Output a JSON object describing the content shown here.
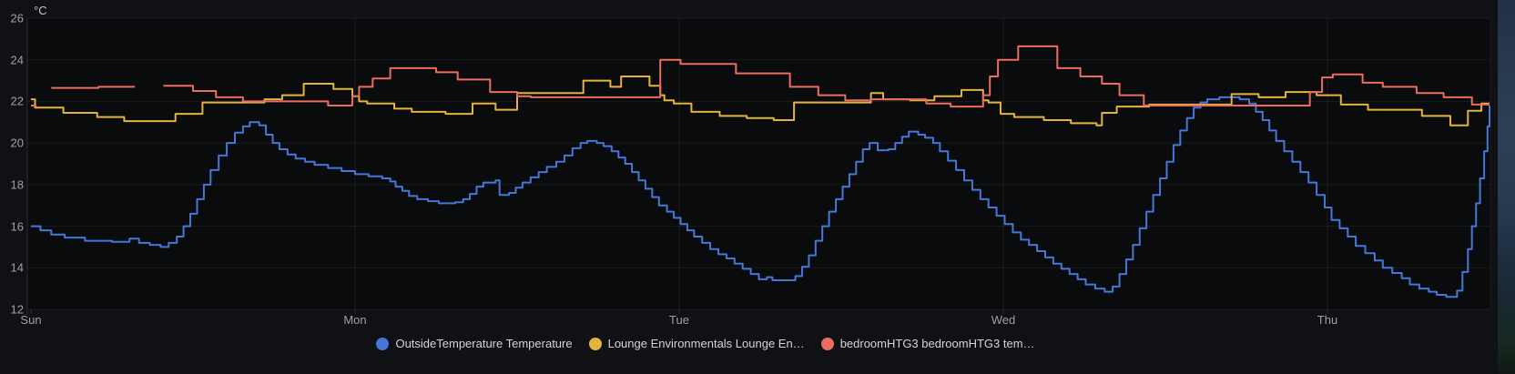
{
  "y_axis": {
    "unit_label": "°C",
    "ticks": [
      12,
      14,
      16,
      18,
      20,
      22,
      24,
      26
    ],
    "min": 12,
    "max": 26
  },
  "x_axis": {
    "ticks": [
      {
        "label": "Sun",
        "t": 0
      },
      {
        "label": "Mon",
        "t": 24
      },
      {
        "label": "Tue",
        "t": 48
      },
      {
        "label": "Wed",
        "t": 72
      },
      {
        "label": "Thu",
        "t": 96
      }
    ],
    "hours_total": 108
  },
  "legend": {
    "items": [
      {
        "label": "OutsideTemperature Temperature",
        "color": "#4677D8"
      },
      {
        "label": "Lounge Environmentals Lounge En…",
        "color": "#E3B341"
      },
      {
        "label": "bedroomHTG3 bedroomHTG3 tem…",
        "color": "#EA6D60"
      }
    ]
  },
  "colors": {
    "panel_bg": "#101114",
    "plot_bg": "#0a0b0c",
    "grid": "rgba(201,209,217,0.08)",
    "border": "rgba(201,209,217,0.15)",
    "tick_text": "#9fa0a6",
    "legend_text": "#d4d5da"
  },
  "chart_data": {
    "type": "line",
    "interpolation": "step-after",
    "title": "",
    "xlabel": "",
    "ylabel": "°C",
    "x_unit": "hours from Sun 00:00",
    "x_range": [
      0,
      108
    ],
    "ylim": [
      12,
      26
    ],
    "grid": true,
    "legend_position": "bottom-center",
    "series": [
      {
        "name": "OutsideTemperature Temperature",
        "color": "#4677D8",
        "points": [
          [
            0,
            16.0
          ],
          [
            0.7,
            15.8
          ],
          [
            1.5,
            15.6
          ],
          [
            2.5,
            15.45
          ],
          [
            4,
            15.3
          ],
          [
            6,
            15.25
          ],
          [
            7.3,
            15.4
          ],
          [
            8,
            15.2
          ],
          [
            8.8,
            15.1
          ],
          [
            9.6,
            15.0
          ],
          [
            10.2,
            15.2
          ],
          [
            10.8,
            15.5
          ],
          [
            11.3,
            16.0
          ],
          [
            11.8,
            16.6
          ],
          [
            12.3,
            17.3
          ],
          [
            12.8,
            18.0
          ],
          [
            13.3,
            18.7
          ],
          [
            13.9,
            19.4
          ],
          [
            14.5,
            20.0
          ],
          [
            15.1,
            20.5
          ],
          [
            15.7,
            20.8
          ],
          [
            16.2,
            21.0
          ],
          [
            16.9,
            20.85
          ],
          [
            17.4,
            20.4
          ],
          [
            17.9,
            20.0
          ],
          [
            18.4,
            19.7
          ],
          [
            19,
            19.45
          ],
          [
            19.6,
            19.25
          ],
          [
            20.3,
            19.1
          ],
          [
            21,
            18.95
          ],
          [
            22,
            18.8
          ],
          [
            23,
            18.65
          ],
          [
            24,
            18.5
          ],
          [
            25,
            18.4
          ],
          [
            26,
            18.3
          ],
          [
            26.6,
            18.15
          ],
          [
            27,
            17.9
          ],
          [
            27.5,
            17.7
          ],
          [
            28,
            17.45
          ],
          [
            28.6,
            17.3
          ],
          [
            29.4,
            17.2
          ],
          [
            30.2,
            17.1
          ],
          [
            31.4,
            17.15
          ],
          [
            32,
            17.3
          ],
          [
            32.5,
            17.55
          ],
          [
            33,
            17.9
          ],
          [
            33.5,
            18.1
          ],
          [
            34.4,
            18.2
          ],
          [
            34.7,
            17.5
          ],
          [
            35.4,
            17.6
          ],
          [
            35.9,
            17.85
          ],
          [
            36.4,
            18.1
          ],
          [
            37,
            18.35
          ],
          [
            37.6,
            18.6
          ],
          [
            38.2,
            18.85
          ],
          [
            38.9,
            19.1
          ],
          [
            39.5,
            19.4
          ],
          [
            40.1,
            19.75
          ],
          [
            40.7,
            20.0
          ],
          [
            41.2,
            20.1
          ],
          [
            41.9,
            20.0
          ],
          [
            42.4,
            19.85
          ],
          [
            43,
            19.6
          ],
          [
            43.5,
            19.3
          ],
          [
            44,
            19.0
          ],
          [
            44.5,
            18.6
          ],
          [
            45,
            18.2
          ],
          [
            45.5,
            17.8
          ],
          [
            46,
            17.4
          ],
          [
            46.5,
            17.0
          ],
          [
            47.1,
            16.7
          ],
          [
            47.6,
            16.4
          ],
          [
            48.1,
            16.1
          ],
          [
            48.6,
            15.8
          ],
          [
            49.1,
            15.5
          ],
          [
            49.7,
            15.2
          ],
          [
            50.3,
            14.9
          ],
          [
            50.9,
            14.65
          ],
          [
            51.5,
            14.45
          ],
          [
            52.1,
            14.2
          ],
          [
            52.7,
            13.95
          ],
          [
            53.3,
            13.7
          ],
          [
            53.9,
            13.45
          ],
          [
            54.5,
            13.55
          ],
          [
            54.9,
            13.4
          ],
          [
            56.6,
            13.6
          ],
          [
            57.1,
            14.05
          ],
          [
            57.6,
            14.6
          ],
          [
            58.1,
            15.3
          ],
          [
            58.6,
            16.0
          ],
          [
            59.1,
            16.7
          ],
          [
            59.6,
            17.3
          ],
          [
            60.1,
            17.9
          ],
          [
            60.6,
            18.5
          ],
          [
            61.1,
            19.1
          ],
          [
            61.6,
            19.7
          ],
          [
            62.1,
            20.0
          ],
          [
            62.7,
            19.65
          ],
          [
            63.5,
            19.7
          ],
          [
            64,
            20.0
          ],
          [
            64.5,
            20.3
          ],
          [
            65,
            20.55
          ],
          [
            65.7,
            20.4
          ],
          [
            66.2,
            20.25
          ],
          [
            66.8,
            20.0
          ],
          [
            67.3,
            19.6
          ],
          [
            67.9,
            19.15
          ],
          [
            68.5,
            18.7
          ],
          [
            69.1,
            18.2
          ],
          [
            69.7,
            17.75
          ],
          [
            70.3,
            17.3
          ],
          [
            70.9,
            16.9
          ],
          [
            71.5,
            16.5
          ],
          [
            72.1,
            16.1
          ],
          [
            72.7,
            15.7
          ],
          [
            73.3,
            15.35
          ],
          [
            73.9,
            15.1
          ],
          [
            74.5,
            14.8
          ],
          [
            75.1,
            14.5
          ],
          [
            75.7,
            14.2
          ],
          [
            76.3,
            13.95
          ],
          [
            76.9,
            13.7
          ],
          [
            77.5,
            13.45
          ],
          [
            78.1,
            13.2
          ],
          [
            78.8,
            13.0
          ],
          [
            79.5,
            12.85
          ],
          [
            80.1,
            13.1
          ],
          [
            80.6,
            13.7
          ],
          [
            81.1,
            14.4
          ],
          [
            81.6,
            15.1
          ],
          [
            82.1,
            15.9
          ],
          [
            82.6,
            16.7
          ],
          [
            83.1,
            17.5
          ],
          [
            83.6,
            18.3
          ],
          [
            84.1,
            19.1
          ],
          [
            84.6,
            19.9
          ],
          [
            85.1,
            20.6
          ],
          [
            85.6,
            21.2
          ],
          [
            86.1,
            21.7
          ],
          [
            86.6,
            21.95
          ],
          [
            87.1,
            22.1
          ],
          [
            88,
            22.2
          ],
          [
            89.5,
            22.1
          ],
          [
            90.2,
            21.9
          ],
          [
            90.7,
            21.5
          ],
          [
            91.2,
            21.1
          ],
          [
            91.7,
            20.6
          ],
          [
            92.2,
            20.1
          ],
          [
            92.8,
            19.6
          ],
          [
            93.4,
            19.1
          ],
          [
            94,
            18.6
          ],
          [
            94.6,
            18.1
          ],
          [
            95.2,
            17.5
          ],
          [
            95.8,
            16.9
          ],
          [
            96.3,
            16.3
          ],
          [
            96.9,
            15.9
          ],
          [
            97.5,
            15.5
          ],
          [
            98.1,
            15.05
          ],
          [
            98.8,
            14.7
          ],
          [
            99.5,
            14.35
          ],
          [
            100.1,
            14.0
          ],
          [
            100.8,
            13.75
          ],
          [
            101.5,
            13.5
          ],
          [
            102.1,
            13.2
          ],
          [
            102.8,
            13.0
          ],
          [
            103.5,
            12.85
          ],
          [
            104.1,
            12.7
          ],
          [
            104.8,
            12.6
          ],
          [
            105.6,
            12.9
          ],
          [
            106,
            13.8
          ],
          [
            106.4,
            14.9
          ],
          [
            106.7,
            16.0
          ],
          [
            107,
            17.1
          ],
          [
            107.3,
            18.3
          ],
          [
            107.6,
            19.6
          ],
          [
            107.85,
            20.8
          ],
          [
            108,
            21.8
          ]
        ]
      },
      {
        "name": "Lounge Environmentals Lounge En…",
        "color": "#E3B341",
        "points": [
          [
            0,
            22.1
          ],
          [
            0.3,
            21.7
          ],
          [
            2.4,
            21.45
          ],
          [
            4.9,
            21.25
          ],
          [
            6.9,
            21.05
          ],
          [
            10.7,
            21.4
          ],
          [
            12.7,
            21.95
          ],
          [
            17.3,
            22.1
          ],
          [
            18.6,
            22.3
          ],
          [
            20.2,
            22.85
          ],
          [
            22.4,
            22.6
          ],
          [
            23.8,
            22.25
          ],
          [
            24.3,
            22.0
          ],
          [
            24.9,
            21.9
          ],
          [
            26.9,
            21.65
          ],
          [
            28.2,
            21.5
          ],
          [
            30.7,
            21.4
          ],
          [
            32.7,
            21.9
          ],
          [
            34.4,
            21.6
          ],
          [
            36,
            22.4
          ],
          [
            40.9,
            23.0
          ],
          [
            42.9,
            22.7
          ],
          [
            43.7,
            23.2
          ],
          [
            45.8,
            22.75
          ],
          [
            46.6,
            22.3
          ],
          [
            46.9,
            22.05
          ],
          [
            47.6,
            21.9
          ],
          [
            48.9,
            21.5
          ],
          [
            51,
            21.3
          ],
          [
            53,
            21.2
          ],
          [
            55,
            21.1
          ],
          [
            56.5,
            21.95
          ],
          [
            62.2,
            22.4
          ],
          [
            63.1,
            22.1
          ],
          [
            65.1,
            22.05
          ],
          [
            66.9,
            22.25
          ],
          [
            68.9,
            22.55
          ],
          [
            70.5,
            22.05
          ],
          [
            70.9,
            21.95
          ],
          [
            71.8,
            21.4
          ],
          [
            72.8,
            21.25
          ],
          [
            75,
            21.1
          ],
          [
            77,
            20.95
          ],
          [
            78.9,
            20.85
          ],
          [
            79.3,
            21.45
          ],
          [
            80.4,
            21.75
          ],
          [
            82.8,
            21.85
          ],
          [
            88.9,
            22.35
          ],
          [
            90.9,
            22.2
          ],
          [
            92.9,
            22.45
          ],
          [
            95.2,
            22.3
          ],
          [
            97,
            21.85
          ],
          [
            99,
            21.6
          ],
          [
            103,
            21.3
          ],
          [
            105.1,
            20.85
          ],
          [
            106.4,
            21.55
          ],
          [
            107.4,
            21.9
          ],
          [
            108,
            21.9
          ]
        ]
      },
      {
        "name": "bedroomHTG3 bedroomHTG3 tem…",
        "color": "#EA6D60",
        "points": [
          [
            0,
            21.8
          ],
          [
            0.4,
            null
          ],
          [
            1.5,
            22.65
          ],
          [
            5,
            22.7
          ],
          [
            7.7,
            null
          ],
          [
            9.8,
            22.75
          ],
          [
            12,
            22.5
          ],
          [
            13.7,
            22.2
          ],
          [
            15.7,
            22.0
          ],
          [
            22,
            21.8
          ],
          [
            23.8,
            22.25
          ],
          [
            24.3,
            22.7
          ],
          [
            25.3,
            23.1
          ],
          [
            26.6,
            23.6
          ],
          [
            30,
            23.4
          ],
          [
            31.6,
            23.05
          ],
          [
            34,
            22.45
          ],
          [
            36,
            22.25
          ],
          [
            37,
            22.2
          ],
          [
            46.6,
            24.0
          ],
          [
            48.1,
            23.8
          ],
          [
            52.2,
            23.35
          ],
          [
            56.2,
            22.7
          ],
          [
            58.3,
            22.3
          ],
          [
            60.3,
            22.05
          ],
          [
            62.2,
            22.1
          ],
          [
            66.3,
            21.9
          ],
          [
            68.1,
            21.75
          ],
          [
            70.5,
            22.3
          ],
          [
            71,
            23.2
          ],
          [
            71.6,
            24.0
          ],
          [
            73.1,
            24.65
          ],
          [
            76,
            23.6
          ],
          [
            77.7,
            23.2
          ],
          [
            79.3,
            22.85
          ],
          [
            80.6,
            22.3
          ],
          [
            82.4,
            21.8
          ],
          [
            94.7,
            22.45
          ],
          [
            95.6,
            23.15
          ],
          [
            96.4,
            23.3
          ],
          [
            98.6,
            22.9
          ],
          [
            100.1,
            22.7
          ],
          [
            102.6,
            22.4
          ],
          [
            104.6,
            22.2
          ],
          [
            106.7,
            21.85
          ],
          [
            108,
            21.85
          ]
        ]
      }
    ]
  }
}
